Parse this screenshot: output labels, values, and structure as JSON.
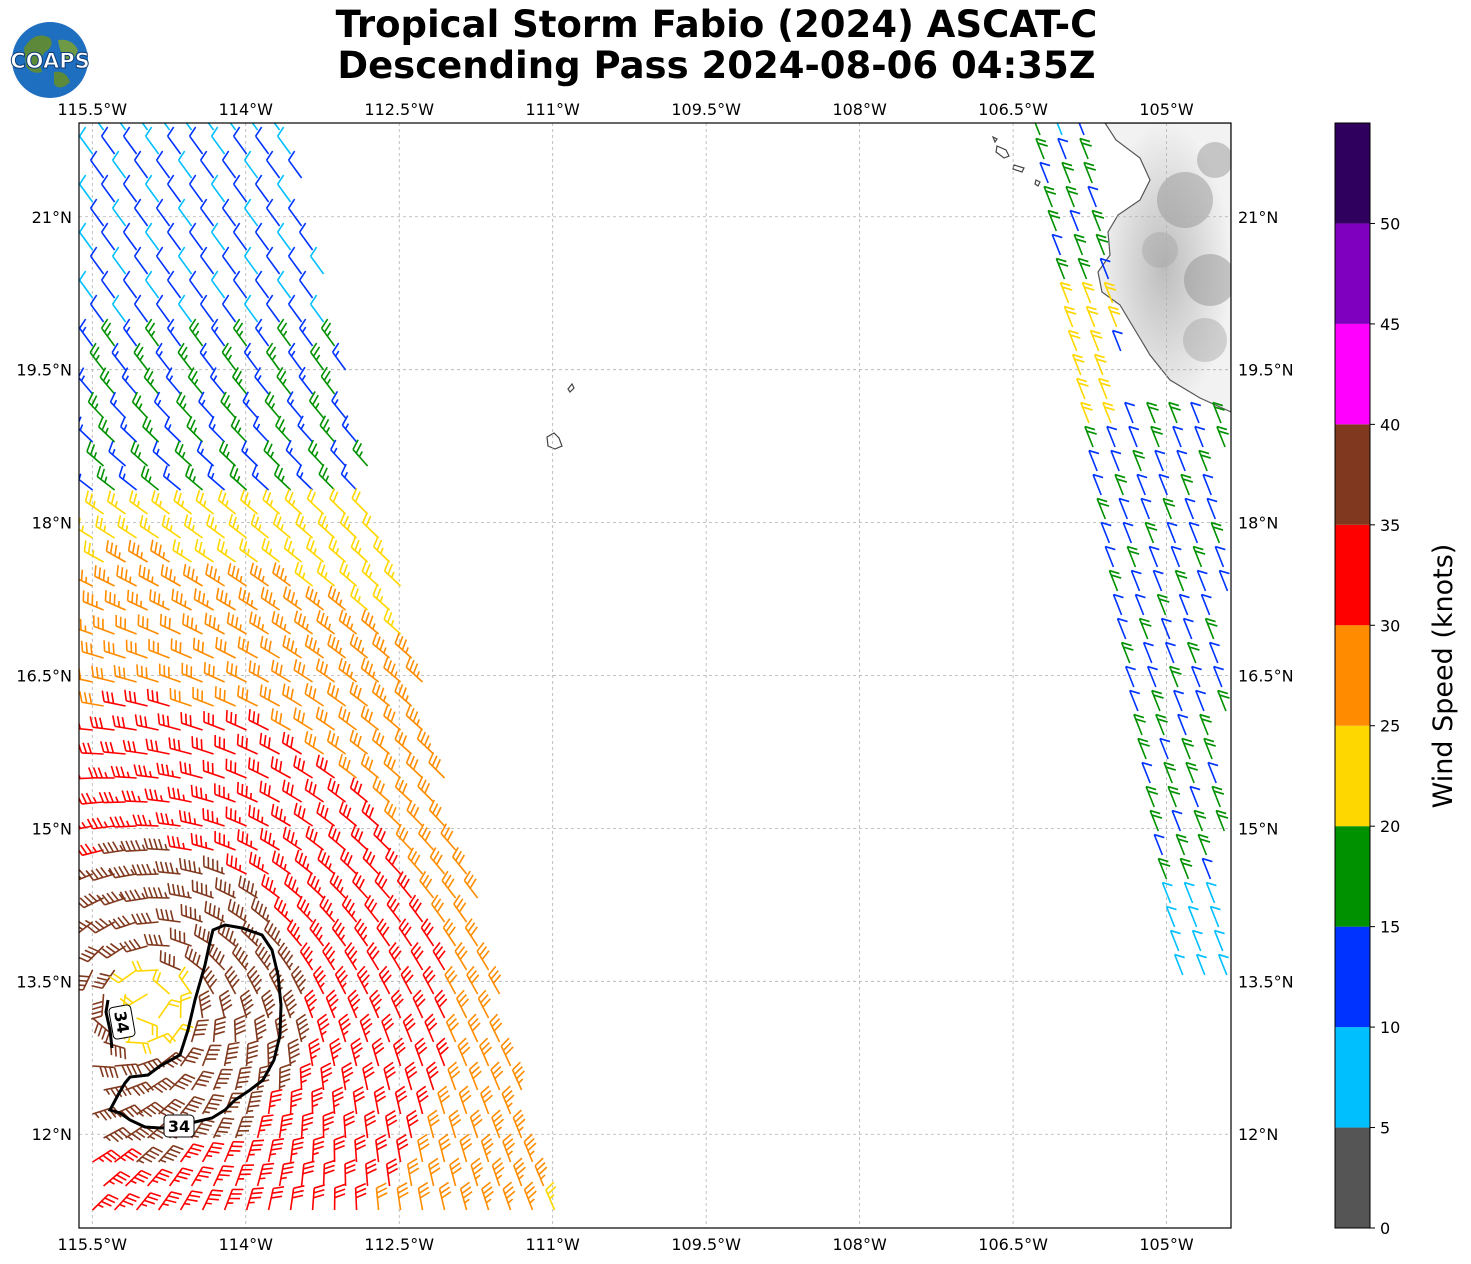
{
  "title": {
    "line1": "Tropical Storm Fabio (2024) ASCAT-C",
    "line2": "Descending Pass 2024-08-06 04:35Z"
  },
  "logo": {
    "text": "COAPS"
  },
  "map": {
    "projection": "PlateCarree",
    "lon_range": [
      -115.63,
      -104.37
    ],
    "lat_range": [
      11.08,
      21.92
    ],
    "lon_ticks": [
      "115.5°W",
      "114°W",
      "112.5°W",
      "111°W",
      "109.5°W",
      "108°W",
      "106.5°W",
      "105°W"
    ],
    "lat_ticks": [
      "21°N",
      "19.5°N",
      "18°N",
      "16.5°N",
      "15°N",
      "13.5°N",
      "12°N"
    ],
    "gridlines": true,
    "land_shading": "grayscale-topography",
    "contour_labels": [
      "34",
      "34"
    ],
    "contour_level_kt": 34
  },
  "colorbar": {
    "label": "Wind Speed (knots)",
    "tick_labels": [
      "0",
      "5",
      "10",
      "15",
      "20",
      "25",
      "30",
      "35",
      "40",
      "45",
      "50"
    ],
    "bins": [
      {
        "range": [
          0,
          5
        ],
        "color": "#555555"
      },
      {
        "range": [
          5,
          10
        ],
        "color": "#00bfff"
      },
      {
        "range": [
          10,
          15
        ],
        "color": "#0033ff"
      },
      {
        "range": [
          15,
          20
        ],
        "color": "#009100"
      },
      {
        "range": [
          20,
          25
        ],
        "color": "#ffd700"
      },
      {
        "range": [
          25,
          30
        ],
        "color": "#ff8c00"
      },
      {
        "range": [
          30,
          35
        ],
        "color": "#ff0000"
      },
      {
        "range": [
          35,
          40
        ],
        "color": "#80391e"
      },
      {
        "range": [
          40,
          45
        ],
        "color": "#ff00ff"
      },
      {
        "range": [
          45,
          50
        ],
        "color": "#8000bf"
      },
      {
        "range": [
          50,
          55
        ],
        "color": "#30005e"
      }
    ]
  }
}
